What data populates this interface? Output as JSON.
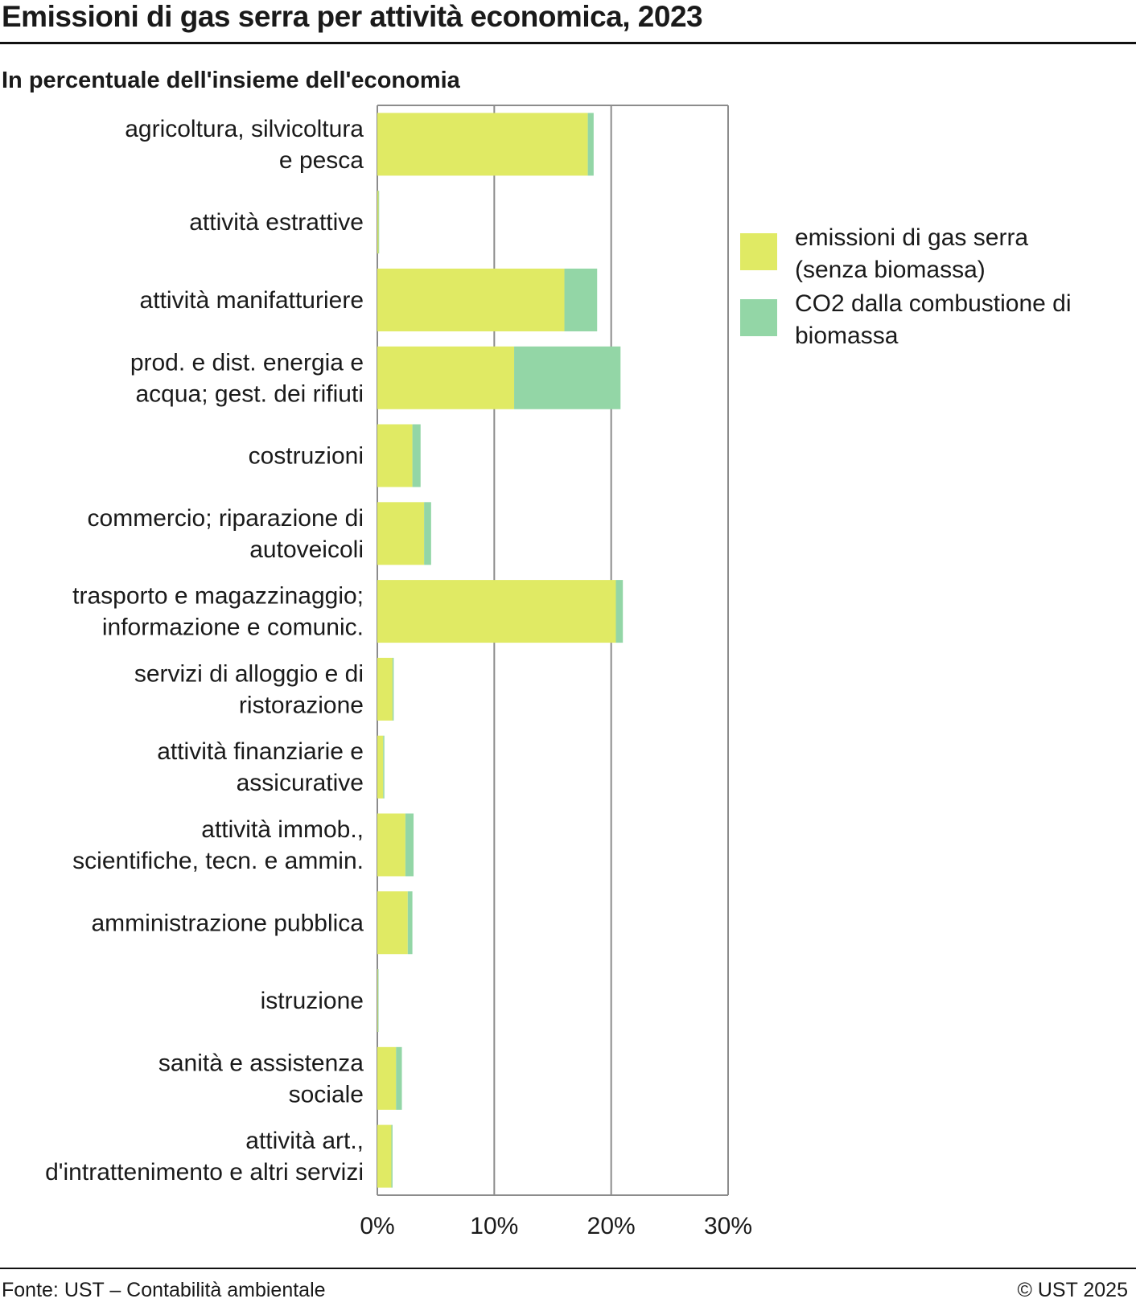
{
  "header": {
    "title": "Emissioni di gas serra per attività economica, 2023",
    "subtitle": "In percentuale dell'insieme dell'economia"
  },
  "footer": {
    "source": "Fonte: UST – Contabilità ambientale",
    "copyright": "© UST 2025"
  },
  "colors": {
    "series1": "#e0ea64",
    "series2": "#93d6a6",
    "grid": "#8c8c8c"
  },
  "chart_data": {
    "type": "bar",
    "orientation": "horizontal",
    "stacked": true,
    "title": "Emissioni di gas serra per attività economica, 2023",
    "subtitle": "In percentuale dell'insieme dell'economia",
    "xlim": [
      0,
      30
    ],
    "ticks": [
      "0%",
      "10%",
      "20%",
      "30%"
    ],
    "tick_values": [
      0,
      10,
      20,
      30
    ],
    "grid": true,
    "legend_position": "right",
    "categories": [
      [
        "agricoltura, silvicoltura",
        "e pesca"
      ],
      [
        "attività estrattive"
      ],
      [
        "attività manifatturiere"
      ],
      [
        "prod. e dist. energia e",
        "acqua; gest. dei rifiuti"
      ],
      [
        "costruzioni"
      ],
      [
        "commercio; riparazione di",
        "autoveicoli"
      ],
      [
        "trasporto e magazzinaggio;",
        "informazione e comunic."
      ],
      [
        "servizi di alloggio e di",
        "ristorazione"
      ],
      [
        "attività finanziarie e",
        "assicurative"
      ],
      [
        "attività immob.,",
        "scientifiche, tecn. e ammin."
      ],
      [
        "amministrazione pubblica"
      ],
      [
        "istruzione"
      ],
      [
        "sanità e assistenza",
        "sociale"
      ],
      [
        "attività art.,",
        "d'intrattenimento e altri servizi"
      ]
    ],
    "series": [
      {
        "name": "emissioni di gas serra (senza biomassa)",
        "legend_lines": [
          "emissioni di gas serra",
          "(senza biomassa)"
        ],
        "values": [
          18.0,
          0.1,
          16.0,
          11.7,
          3.0,
          4.0,
          20.4,
          1.3,
          0.5,
          2.4,
          2.6,
          0.05,
          1.6,
          1.2
        ]
      },
      {
        "name": "CO2 dalla combustione di biomassa",
        "legend_lines": [
          "CO2 dalla combustione di",
          "biomassa"
        ],
        "values": [
          0.5,
          0.02,
          2.8,
          9.1,
          0.7,
          0.6,
          0.6,
          0.1,
          0.1,
          0.7,
          0.4,
          0.02,
          0.5,
          0.1
        ]
      }
    ]
  }
}
